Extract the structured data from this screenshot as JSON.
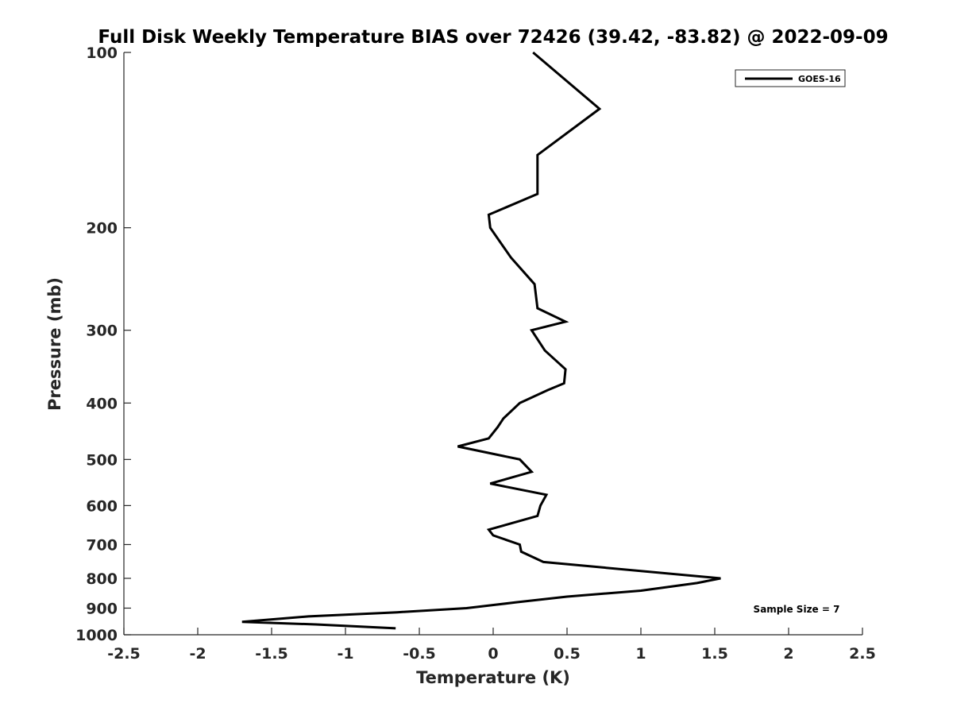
{
  "chart_data": {
    "type": "line",
    "title": "Full Disk Weekly Temperature BIAS over 72426 (39.42, -83.82) @ 2022-09-09",
    "xlabel": "Temperature (K)",
    "ylabel": "Pressure (mb)",
    "xlim": [
      -2.5,
      2.5
    ],
    "ylim": [
      100,
      1000
    ],
    "y_scale": "log",
    "y_reversed": true,
    "x_ticks": [
      -2.5,
      -2,
      -1.5,
      -1,
      -0.5,
      0,
      0.5,
      1,
      1.5,
      2,
      2.5
    ],
    "x_tick_labels": [
      "-2.5",
      "-2",
      "-1.5",
      "-1",
      "-0.5",
      "0",
      "0.5",
      "1",
      "1.5",
      "2",
      "2.5"
    ],
    "y_ticks": [
      100,
      200,
      300,
      400,
      500,
      600,
      700,
      800,
      900,
      1000
    ],
    "y_tick_labels": [
      "100",
      "200",
      "300",
      "400",
      "500",
      "600",
      "700",
      "800",
      "900",
      "1000"
    ],
    "grid": false,
    "legend": {
      "position": "top-right",
      "entries": [
        "GOES-16"
      ]
    },
    "annotation": "Sample Size = 7",
    "series": [
      {
        "name": "GOES-16",
        "color": "#000000",
        "points": [
          [
            0.27,
            100
          ],
          [
            0.72,
            125
          ],
          [
            0.3,
            150
          ],
          [
            0.3,
            175
          ],
          [
            -0.03,
            190
          ],
          [
            -0.02,
            200
          ],
          [
            0.12,
            225
          ],
          [
            0.28,
            250
          ],
          [
            0.3,
            275
          ],
          [
            0.49,
            290
          ],
          [
            0.26,
            300
          ],
          [
            0.35,
            325
          ],
          [
            0.49,
            350
          ],
          [
            0.48,
            370
          ],
          [
            0.37,
            380
          ],
          [
            0.18,
            400
          ],
          [
            0.07,
            425
          ],
          [
            0.03,
            440
          ],
          [
            -0.03,
            460
          ],
          [
            -0.24,
            475
          ],
          [
            0.18,
            500
          ],
          [
            0.26,
            525
          ],
          [
            -0.02,
            550
          ],
          [
            0.36,
            575
          ],
          [
            0.32,
            600
          ],
          [
            0.3,
            625
          ],
          [
            -0.03,
            660
          ],
          [
            0.0,
            675
          ],
          [
            0.18,
            700
          ],
          [
            0.19,
            720
          ],
          [
            0.34,
            750
          ],
          [
            1.54,
            800
          ],
          [
            1.38,
            815
          ],
          [
            1.0,
            840
          ],
          [
            0.5,
            860
          ],
          [
            0.15,
            880
          ],
          [
            -0.18,
            900
          ],
          [
            -0.65,
            915
          ],
          [
            -1.25,
            930
          ],
          [
            -1.7,
            950
          ],
          [
            -1.2,
            960
          ],
          [
            -0.66,
            975
          ]
        ]
      }
    ]
  }
}
